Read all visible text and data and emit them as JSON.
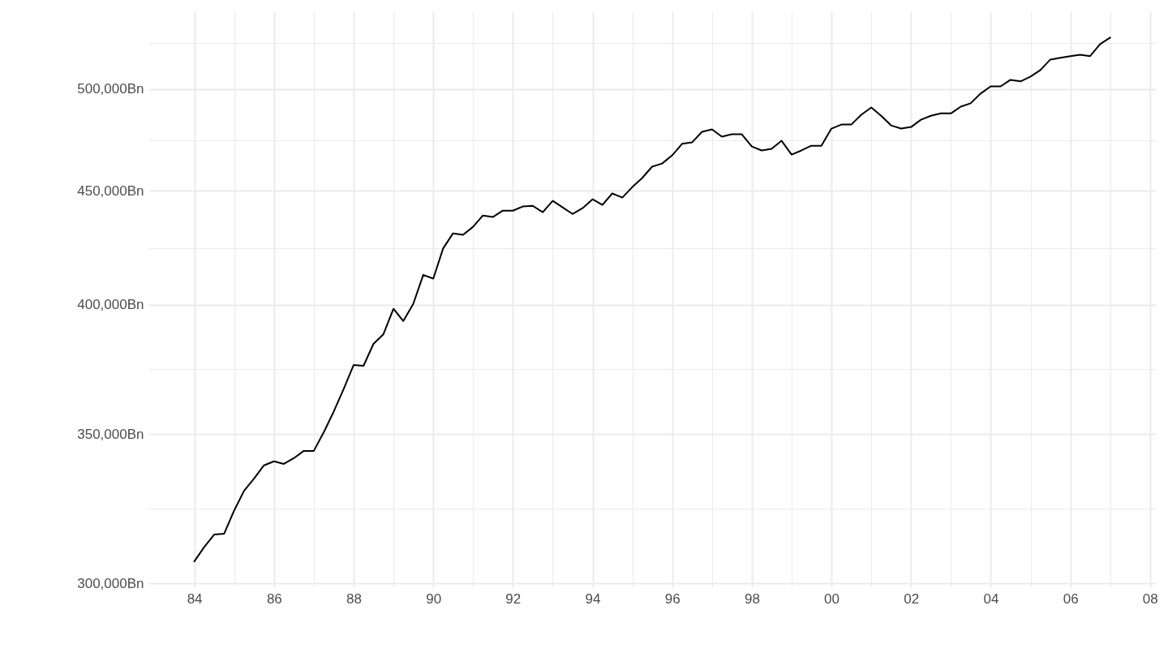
{
  "chart_data": {
    "type": "line",
    "x": [
      "1984-01",
      "1984-04",
      "1984-07",
      "1984-10",
      "1985-01",
      "1985-04",
      "1985-07",
      "1985-10",
      "1986-01",
      "1986-04",
      "1986-07",
      "1986-10",
      "1987-01",
      "1987-04",
      "1987-07",
      "1987-10",
      "1988-01",
      "1988-04",
      "1988-07",
      "1988-10",
      "1989-01",
      "1989-04",
      "1989-07",
      "1989-10",
      "1990-01",
      "1990-04",
      "1990-07",
      "1990-10",
      "1991-01",
      "1991-04",
      "1991-07",
      "1991-10",
      "1992-01",
      "1992-04",
      "1992-07",
      "1992-10",
      "1993-01",
      "1993-04",
      "1993-07",
      "1993-10",
      "1994-01",
      "1994-04",
      "1994-07",
      "1994-10",
      "1995-01",
      "1995-04",
      "1995-07",
      "1995-10",
      "1996-01",
      "1996-04",
      "1996-07",
      "1996-10",
      "1997-01",
      "1997-04",
      "1997-07",
      "1997-10",
      "1998-01",
      "1998-04",
      "1998-07",
      "1998-10",
      "1999-01",
      "1999-04",
      "1999-07",
      "1999-10",
      "2000-01",
      "2000-04",
      "2000-07",
      "2000-10",
      "2001-01",
      "2001-04",
      "2001-07",
      "2001-10",
      "2002-01",
      "2002-04",
      "2002-07",
      "2002-10",
      "2003-01",
      "2003-04",
      "2003-07",
      "2003-10",
      "2004-01",
      "2004-04",
      "2004-07",
      "2004-10",
      "2005-01",
      "2005-04",
      "2005-07",
      "2005-10",
      "2006-01",
      "2006-04",
      "2006-07",
      "2006-10",
      "2007-01"
    ],
    "series": [
      {
        "color": "#000000",
        "values": [
          306900,
          311500,
          315500,
          315800,
          323500,
          330100,
          334300,
          338900,
          340300,
          339400,
          341400,
          344000,
          344000,
          350600,
          358100,
          366600,
          375900,
          375600,
          384200,
          388100,
          398400,
          393400,
          400400,
          412600,
          411000,
          424000,
          430700,
          430000,
          433600,
          438700,
          438000,
          440900,
          440900,
          442800,
          443100,
          440200,
          445400,
          442400,
          439400,
          442000,
          446100,
          443500,
          448800,
          446900,
          451800,
          456000,
          461400,
          462900,
          466800,
          472400,
          473100,
          478300,
          479500,
          475900,
          477100,
          477100,
          471100,
          469200,
          470000,
          473900,
          467200,
          469200,
          471500,
          471500,
          479900,
          481900,
          481900,
          486800,
          490500,
          486300,
          481500,
          479900,
          480700,
          484300,
          486300,
          487500,
          487500,
          490900,
          492600,
          497600,
          501300,
          501300,
          504700,
          503900,
          506400,
          509800,
          515400,
          516300,
          517200,
          518000,
          517200,
          523700,
          527200
        ]
      }
    ],
    "log": "y",
    "xlim": [
      "1982-11-06",
      "2008-02-24"
    ],
    "xticks": [
      {
        "value": "1984",
        "label": "84"
      },
      {
        "value": "1985",
        "label": null
      },
      {
        "value": "1986",
        "label": "86"
      },
      {
        "value": "1987",
        "label": null
      },
      {
        "value": "1988",
        "label": "88"
      },
      {
        "value": "1989",
        "label": null
      },
      {
        "value": "1990",
        "label": "90"
      },
      {
        "value": "1991",
        "label": null
      },
      {
        "value": "1992",
        "label": "92"
      },
      {
        "value": "1993",
        "label": null
      },
      {
        "value": "1994",
        "label": "94"
      },
      {
        "value": "1995",
        "label": null
      },
      {
        "value": "1996",
        "label": "96"
      },
      {
        "value": "1997",
        "label": null
      },
      {
        "value": "1998",
        "label": "98"
      },
      {
        "value": "1999",
        "label": null
      },
      {
        "value": "2000",
        "label": "00"
      },
      {
        "value": "2001",
        "label": null
      },
      {
        "value": "2002",
        "label": "02"
      },
      {
        "value": "2003",
        "label": null
      },
      {
        "value": "2004",
        "label": "04"
      },
      {
        "value": "2005",
        "label": null
      },
      {
        "value": "2006",
        "label": "06"
      },
      {
        "value": "2007",
        "label": null
      },
      {
        "value": "2008",
        "label": "08"
      }
    ],
    "ylim": [
      298800,
      541700
    ],
    "yticks": [
      {
        "value": 300000,
        "label": "300,000Bn"
      },
      {
        "value": 324000,
        "label": null
      },
      {
        "value": 350000,
        "label": "350,000Bn"
      },
      {
        "value": 374200,
        "label": null
      },
      {
        "value": 400000,
        "label": "400,000Bn"
      },
      {
        "value": 424300,
        "label": null
      },
      {
        "value": 450000,
        "label": "450,000Bn"
      },
      {
        "value": 474300,
        "label": null
      },
      {
        "value": 500000,
        "label": "500,000Bn"
      },
      {
        "value": 524400,
        "label": null
      }
    ],
    "grid": true
  }
}
